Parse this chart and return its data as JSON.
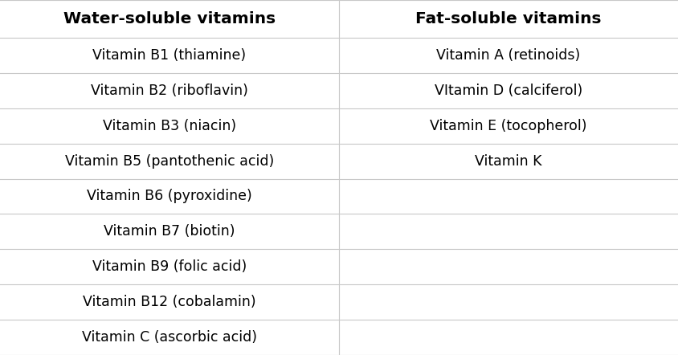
{
  "col1_header": "Water-soluble vitamins",
  "col2_header": "Fat-soluble vitamins",
  "col1_items": [
    "Vitamin B1 (thiamine)",
    "Vitamin B2 (riboflavin)",
    "Vitamin B3 (niacin)",
    "Vitamin B5 (pantothenic acid)",
    "Vitamin B6 (pyroxidine)",
    "Vitamin B7 (biotin)",
    "Vitamin B9 (folic acid)",
    "Vitamin B12 (cobalamin)",
    "Vitamin C (ascorbic acid)"
  ],
  "col2_items": [
    "Vitamin A (retinoids)",
    "VItamin D (calciferol)",
    "Vitamin E (tocopherol)",
    "Vitamin K",
    "",
    "",
    "",
    "",
    ""
  ],
  "bg_color": "#ffffff",
  "header_color": "#000000",
  "text_color": "#000000",
  "line_color": "#c8c8c8",
  "header_fontsize": 14.5,
  "body_fontsize": 12.5,
  "fig_width": 8.44,
  "fig_height": 4.42,
  "dpi": 100
}
